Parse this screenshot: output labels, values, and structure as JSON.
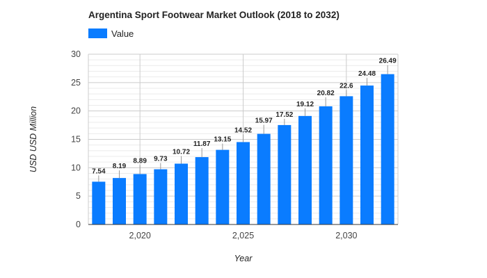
{
  "chart_data": {
    "type": "bar",
    "title": "Argentina Sport Footwear Market Outlook (2018 to 2032)",
    "xlabel": "Year",
    "ylabel": "USD USD Million",
    "ylim": [
      0,
      30
    ],
    "yticks": [
      0,
      5,
      10,
      15,
      20,
      25,
      30
    ],
    "xticks": [
      {
        "value": 2020,
        "label": "2,020"
      },
      {
        "value": 2025,
        "label": "2,025"
      },
      {
        "value": 2030,
        "label": "2,030"
      }
    ],
    "grid": true,
    "legend_position": "top-left",
    "x": [
      2018,
      2019,
      2020,
      2021,
      2022,
      2023,
      2024,
      2025,
      2026,
      2027,
      2028,
      2029,
      2030,
      2031,
      2032
    ],
    "series": [
      {
        "name": "Value",
        "color": "#0a7cff",
        "values": [
          7.54,
          8.19,
          8.89,
          9.73,
          10.72,
          11.87,
          13.15,
          14.52,
          15.97,
          17.52,
          19.12,
          20.82,
          22.6,
          24.48,
          26.49
        ]
      }
    ]
  }
}
